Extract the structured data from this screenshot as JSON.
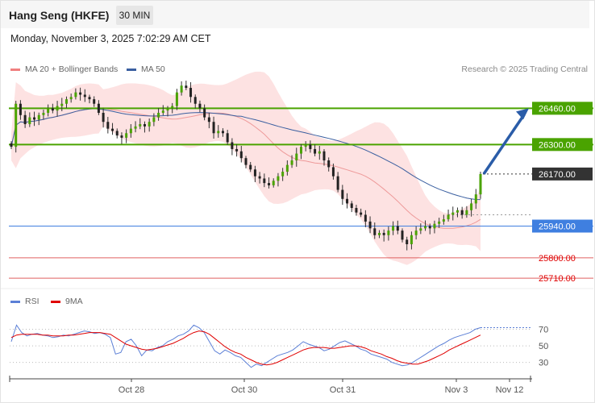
{
  "header": {
    "title": "Hang Seng (HKFE)",
    "timeframe": "30 MIN"
  },
  "timestamp": "Monday, November 3, 2025 7:02:29 AM CET",
  "legend": {
    "ma20_label": "MA 20 + Bollinger Bands",
    "ma20_color": "#f08080",
    "ma50_label": "MA 50",
    "ma50_color": "#3a5fa0"
  },
  "credit": "Research © 2025 Trading Central",
  "rsi_legend": {
    "rsi_label": "RSI",
    "rsi_color": "#5b7fd6",
    "ma_label": "9MA",
    "ma_color": "#e00000"
  },
  "chart_data": [
    {
      "type": "candlestick",
      "y_range": [
        25675,
        26600
      ],
      "levels": [
        {
          "label": "26460.00",
          "value": 26460,
          "kind": "resistance",
          "color": "#4aa300",
          "text_color": "#ffffff",
          "style": "box"
        },
        {
          "label": "26300.00",
          "value": 26300,
          "kind": "resistance",
          "color": "#4aa300",
          "text_color": "#ffffff",
          "style": "box"
        },
        {
          "label": "26170.00",
          "value": 26170,
          "kind": "last",
          "color": "#333333",
          "text_color": "#ffffff",
          "style": "box"
        },
        {
          "label": "25940.00",
          "value": 25940,
          "kind": "support",
          "color": "#3f7fe0",
          "text_color": "#ffffff",
          "style": "box"
        },
        {
          "label": "25800.00",
          "value": 25800,
          "kind": "support",
          "color": "#e06060",
          "text_color": "#e00000",
          "style": "text"
        },
        {
          "label": "25710.00",
          "value": 25710,
          "kind": "support",
          "color": "#e06060",
          "text_color": "#e00000",
          "style": "text"
        }
      ],
      "forecast": {
        "from": 26170,
        "to": 26460,
        "direction": "up"
      },
      "closes": [
        26290,
        26480,
        26430,
        26390,
        26420,
        26410,
        26430,
        26440,
        26460,
        26450,
        26470,
        26480,
        26500,
        26510,
        26530,
        26520,
        26510,
        26500,
        26480,
        26440,
        26400,
        26370,
        26360,
        26340,
        26330,
        26350,
        26370,
        26380,
        26390,
        26380,
        26400,
        26420,
        26440,
        26450,
        26460,
        26470,
        26530,
        26560,
        26550,
        26510,
        26480,
        26460,
        26420,
        26400,
        26350,
        26360,
        26350,
        26310,
        26280,
        26270,
        26240,
        26210,
        26190,
        26160,
        26150,
        26130,
        26120,
        26140,
        26160,
        26180,
        26210,
        26230,
        26260,
        26290,
        26300,
        26280,
        26260,
        26270,
        26230,
        26200,
        26160,
        26100,
        26060,
        26040,
        26020,
        26000,
        25990,
        25960,
        25930,
        25900,
        25910,
        25900,
        25920,
        25940,
        25920,
        25880,
        25860,
        25900,
        25920,
        25930,
        25940,
        25930,
        25950,
        25960,
        25970,
        25990,
        26000,
        26010,
        25990,
        26010,
        26040,
        26080,
        26170
      ],
      "rsi_ticks": [
        30,
        50,
        70
      ],
      "rsi_range": [
        15,
        90
      ],
      "rsi": [
        55,
        75,
        66,
        62,
        64,
        65,
        63,
        62,
        60,
        61,
        63,
        62,
        64,
        66,
        68,
        67,
        65,
        66,
        64,
        60,
        40,
        42,
        55,
        58,
        50,
        38,
        45,
        44,
        48,
        50,
        55,
        58,
        62,
        64,
        68,
        75,
        72,
        66,
        55,
        44,
        40,
        45,
        42,
        38,
        36,
        30,
        24,
        28,
        26,
        30,
        34,
        38,
        40,
        42,
        45,
        50,
        55,
        52,
        50,
        48,
        44,
        46,
        50,
        54,
        56,
        53,
        50,
        46,
        44,
        40,
        38,
        36,
        34,
        30,
        28,
        26,
        27,
        30,
        34,
        38,
        42,
        46,
        50,
        53,
        57,
        60,
        62,
        64,
        66,
        70,
        72
      ],
      "rsi_ma": [
        60,
        63,
        64,
        64,
        64,
        64,
        63,
        63,
        62,
        62,
        62,
        63,
        63,
        64,
        65,
        66,
        66,
        66,
        65,
        64,
        60,
        56,
        52,
        50,
        48,
        46,
        45,
        46,
        47,
        49,
        51,
        53,
        56,
        59,
        63,
        66,
        68,
        67,
        64,
        59,
        54,
        49,
        45,
        42,
        40,
        36,
        33,
        30,
        28,
        27,
        28,
        30,
        33,
        36,
        39,
        42,
        45,
        47,
        48,
        48,
        48,
        47,
        47,
        48,
        49,
        50,
        50,
        49,
        47,
        44,
        42,
        40,
        37,
        35,
        32,
        30,
        29,
        28,
        28,
        30,
        32,
        35,
        38,
        41,
        45,
        48,
        51,
        54,
        57,
        60,
        63
      ],
      "x_ticks": [
        "Oct 28",
        "Oct 30",
        "Oct 31",
        "Nov 3",
        "Nov 12"
      ]
    }
  ]
}
